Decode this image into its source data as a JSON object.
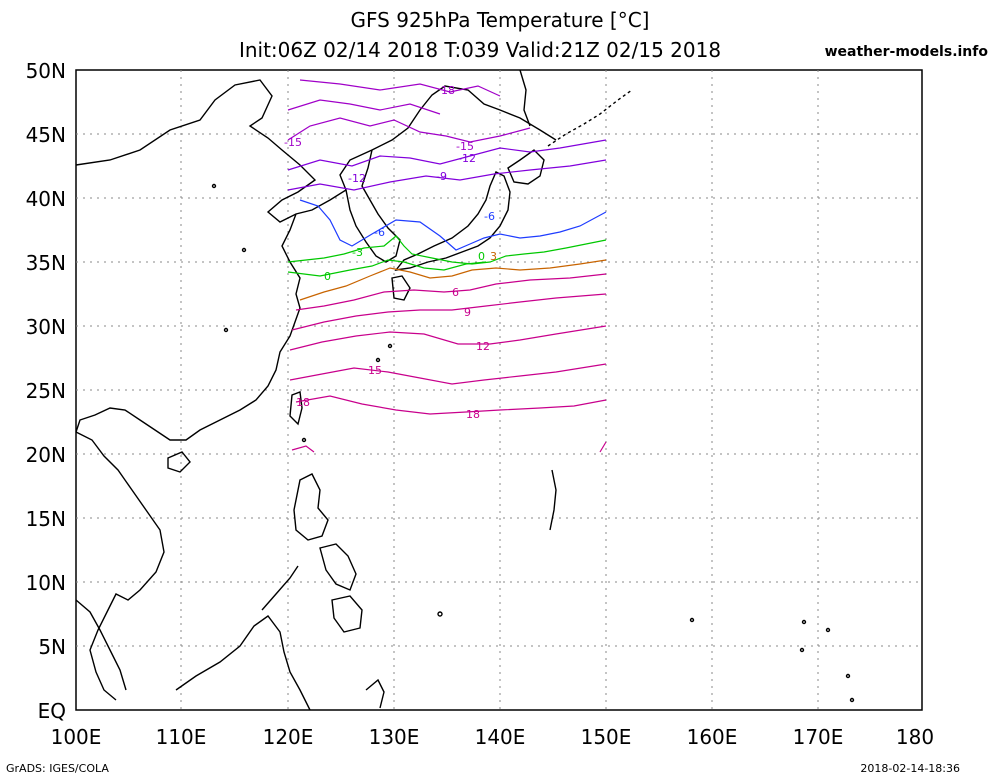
{
  "header": {
    "title_line1": "GFS 925hPa Temperature [°C]",
    "title_line2": "Init:06Z 02/14 2018 T:039 Valid:21Z 02/15 2018",
    "site": "weather-models.info"
  },
  "footer": {
    "left": "GrADS: IGES/COLA",
    "right": "2018-02-14-18:36"
  },
  "map": {
    "lat_labels": [
      "50N",
      "45N",
      "40N",
      "35N",
      "30N",
      "25N",
      "20N",
      "15N",
      "10N",
      "5N",
      "EQ"
    ],
    "lon_labels": [
      "100E",
      "110E",
      "120E",
      "130E",
      "140E",
      "150E",
      "160E",
      "170E",
      "180"
    ],
    "contour_labels": [
      "18",
      "-15",
      "-15",
      "-12",
      "-12",
      "-9",
      "-6",
      "-6",
      "-3",
      "0",
      "0",
      "3",
      "6",
      "9",
      "12",
      "15",
      "18",
      "-18"
    ],
    "colors": {
      "purple_cold": "#a000c8",
      "dark_purple": "#8200dc",
      "blue": "#1e3cff",
      "green": "#00c800",
      "orange": "#c86400",
      "magenta": "#c8008c",
      "coast": "#000000",
      "grid": "#808080"
    }
  }
}
